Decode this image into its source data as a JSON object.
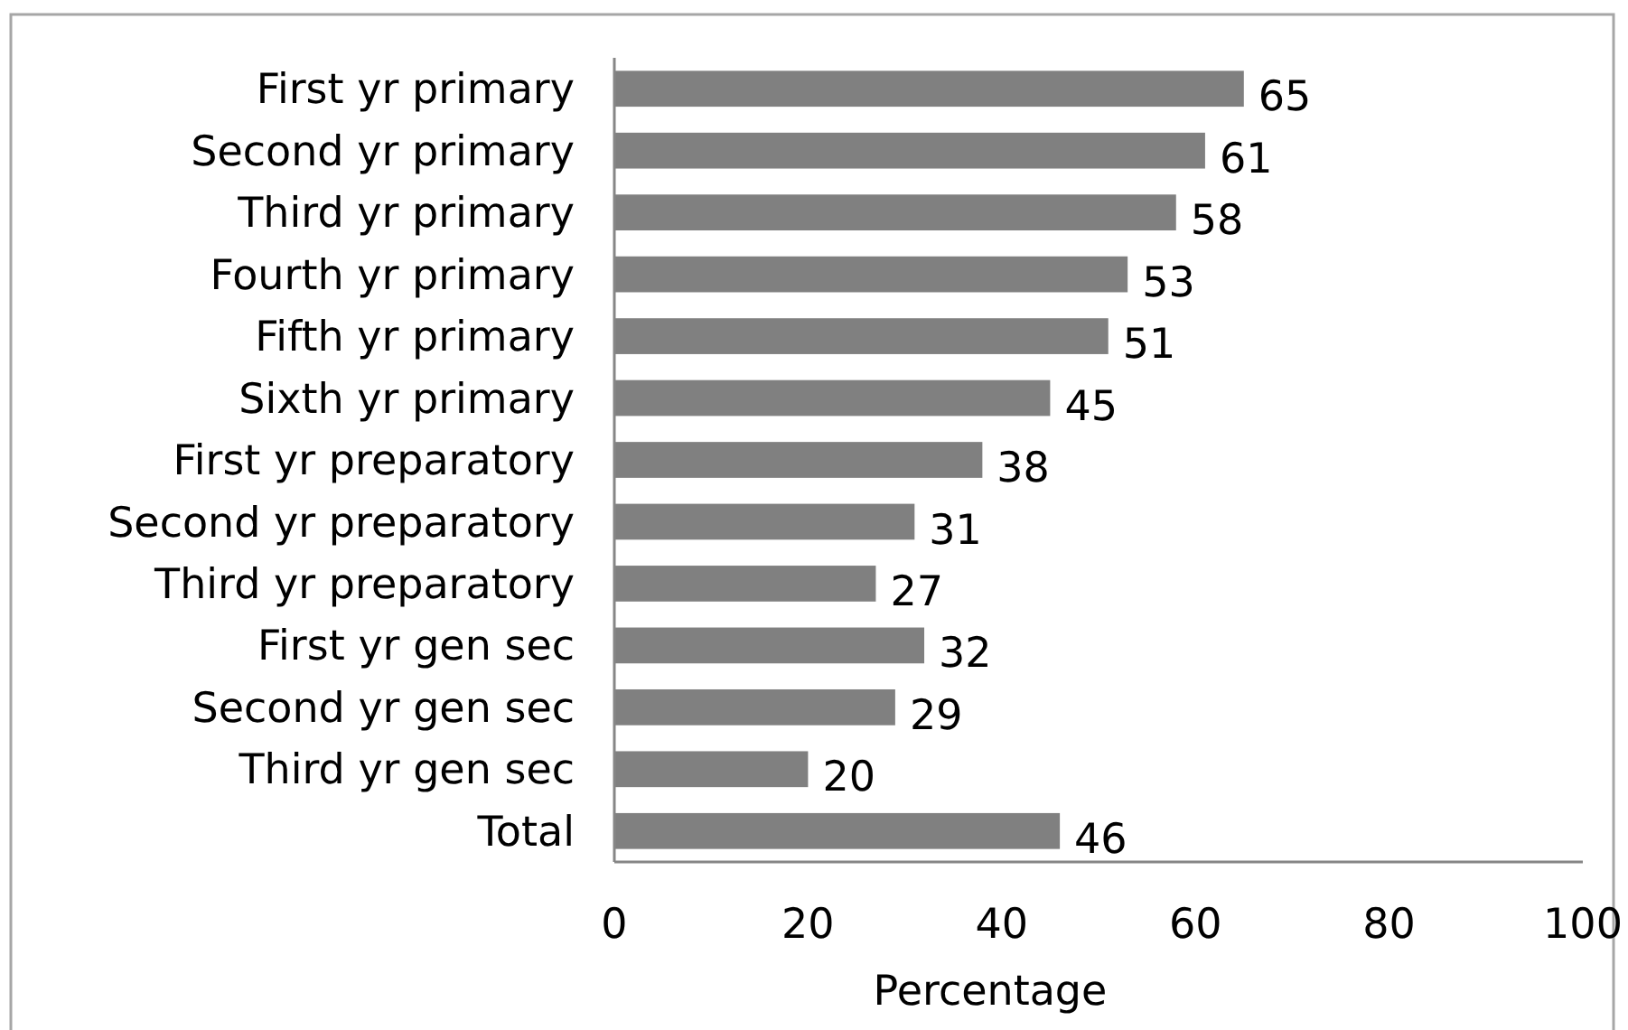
{
  "chart_data": {
    "type": "bar",
    "orientation": "horizontal",
    "xlabel": "Percentage",
    "categories": [
      "First yr primary",
      "Second yr primary",
      "Third yr primary",
      "Fourth yr primary",
      "Fifth yr primary",
      "Sixth yr primary",
      "First yr preparatory",
      "Second yr preparatory",
      "Third yr preparatory",
      "First yr gen sec",
      "Second yr gen sec",
      "Third yr gen sec",
      "Total"
    ],
    "values": [
      65,
      61,
      58,
      53,
      51,
      45,
      38,
      31,
      27,
      32,
      29,
      20,
      46
    ],
    "color": "#808080",
    "xlim": [
      0,
      100
    ],
    "xticks": [
      0,
      20,
      40,
      60,
      80,
      100
    ],
    "data_labels": true
  }
}
